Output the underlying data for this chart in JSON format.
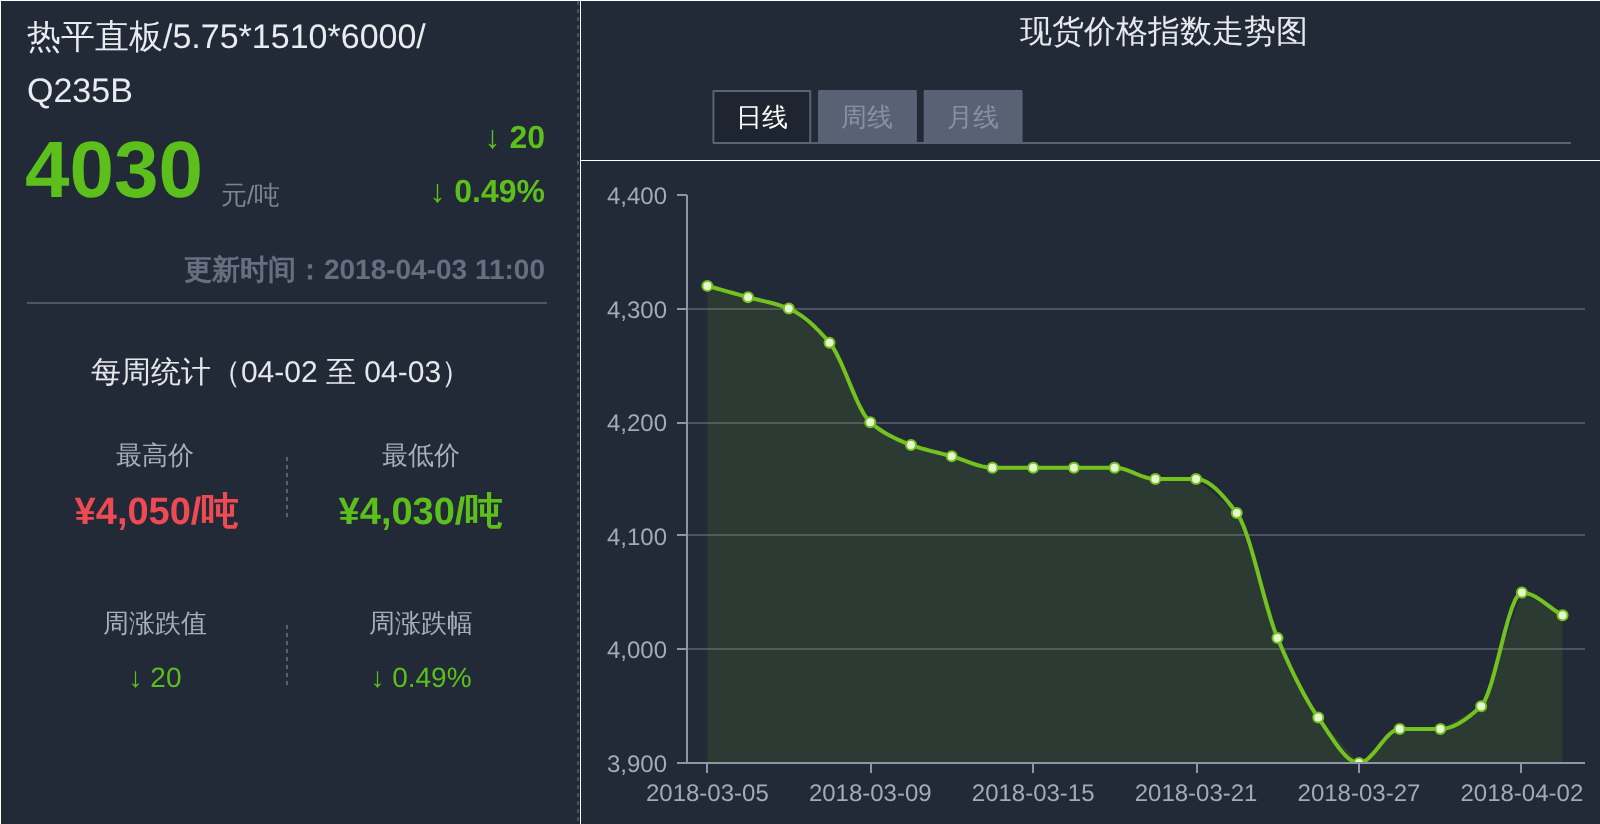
{
  "chart_data": [
    {
      "type": "other",
      "title": "热平直板/5.75*1510*6000/Q235B",
      "annotations": [
        "4030",
        "元/吨",
        "↓ 20",
        "↓ 0.49%",
        "更新时间：2018-04-03 11:00",
        "每周统计（04-02 至 04-03）",
        "最高价",
        "¥4,050/吨",
        "最低价",
        "¥4,030/吨",
        "周涨跌值",
        "↓ 20",
        "周涨跌幅",
        "↓ 0.49%"
      ]
    },
    {
      "type": "area",
      "title": "现货价格指数走势图",
      "annotations": [
        "日线",
        "周线",
        "月线"
      ],
      "categories": [
        "2018-03-05",
        null,
        null,
        null,
        "2018-03-09",
        null,
        null,
        null,
        "2018-03-15",
        null,
        null,
        null,
        "2018-03-21",
        null,
        null,
        null,
        "2018-03-27",
        null,
        null,
        null,
        "2018-04-02",
        null
      ],
      "series": [
        {
          "color": "#74c21f",
          "values": [
            4320,
            4310,
            4300,
            4270,
            4200,
            4180,
            4170,
            4160,
            4160,
            4160,
            4160,
            4150,
            4150,
            4120,
            4010,
            3940,
            3900,
            3930,
            3930,
            3950,
            4050,
            4030
          ]
        }
      ],
      "ylim": [
        3900,
        4400
      ],
      "yticks": [
        {
          "value": 3900,
          "label": "3,900"
        },
        {
          "value": 4000,
          "label": "4,000"
        },
        {
          "value": 4100,
          "label": "4,100"
        },
        {
          "value": 4200,
          "label": "4,200"
        },
        {
          "value": 4300,
          "label": "4,300"
        },
        {
          "value": 4400,
          "label": "4,400"
        }
      ],
      "grid": "y",
      "marker": "circle"
    }
  ]
}
